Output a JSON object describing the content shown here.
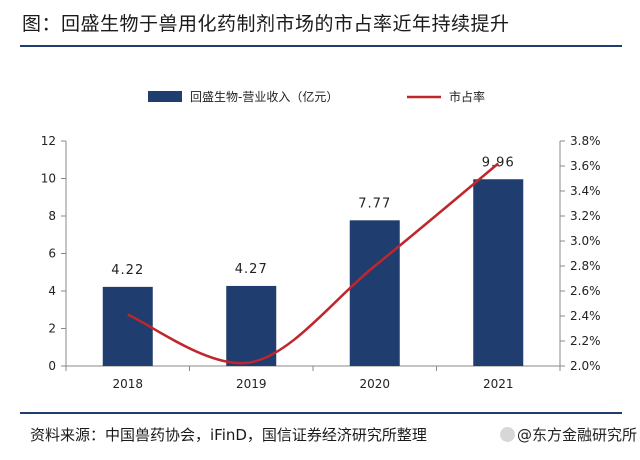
{
  "page": {
    "title": "图：回盛生物于兽用化药制剂市场的市占率近年持续提升",
    "source": "资料来源：中国兽药协会，iFinD，国信证券经济研究所整理",
    "watermark": "@东方金融研究所"
  },
  "chart_data": {
    "type": "bar",
    "categories": [
      "2018",
      "2019",
      "2020",
      "2021"
    ],
    "series": [
      {
        "name": "回盛生物-营业收入（亿元）",
        "type": "bar",
        "axis": "left",
        "color": "#1f3d6e",
        "values": [
          4.22,
          4.27,
          7.77,
          9.96
        ],
        "data_labels": [
          "4.22",
          "4.27",
          "7.77",
          "9.96"
        ]
      },
      {
        "name": "市占率",
        "type": "line",
        "axis": "right",
        "color": "#c0262c",
        "smooth": true,
        "values": [
          2.41,
          2.03,
          2.8,
          3.62
        ]
      }
    ],
    "y_left": {
      "min": 0,
      "max": 12,
      "ticks": [
        0,
        2,
        4,
        6,
        8,
        10,
        12
      ],
      "tick_labels": [
        "0",
        "2",
        "4",
        "6",
        "8",
        "10",
        "12"
      ]
    },
    "y_right": {
      "min": 2.0,
      "max": 3.8,
      "ticks": [
        2.0,
        2.2,
        2.4,
        2.6,
        2.8,
        3.0,
        3.2,
        3.4,
        3.6,
        3.8
      ],
      "tick_labels": [
        "2.0%",
        "2.2%",
        "2.4%",
        "2.6%",
        "2.8%",
        "3.0%",
        "3.2%",
        "3.4%",
        "3.6%",
        "3.8%"
      ]
    },
    "legend_position": "top-center",
    "grid": false
  }
}
